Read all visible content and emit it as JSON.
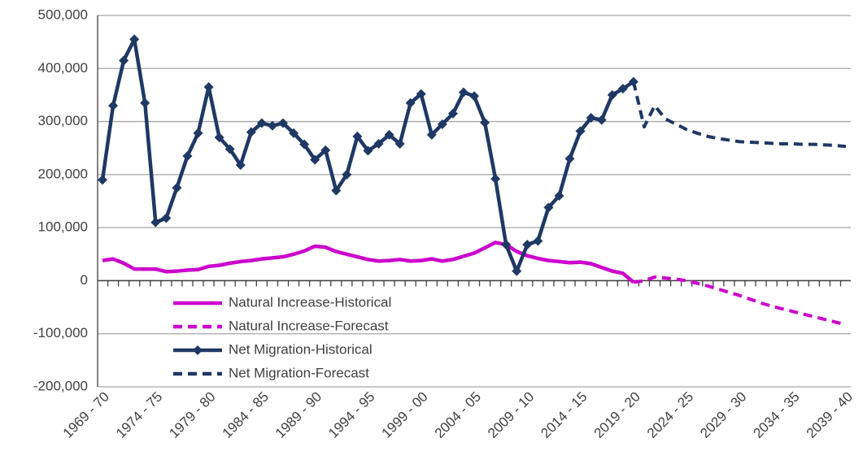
{
  "chart_data": {
    "type": "line",
    "categories": [
      "1969 - 70",
      null,
      null,
      null,
      null,
      "1974 - 75",
      null,
      null,
      null,
      null,
      "1979 - 80",
      null,
      null,
      null,
      null,
      "1984 - 85",
      null,
      null,
      null,
      null,
      "1989 - 90",
      null,
      null,
      null,
      null,
      "1994 - 95",
      null,
      null,
      null,
      null,
      "1999 - 00",
      null,
      null,
      null,
      null,
      "2004 - 05",
      null,
      null,
      null,
      null,
      "2009 - 10",
      null,
      null,
      null,
      null,
      "2014 - 15",
      null,
      null,
      null,
      null,
      "2019 - 20",
      null,
      null,
      null,
      null,
      "2024 - 25",
      null,
      null,
      null,
      null,
      "2029 - 30",
      null,
      null,
      null,
      null,
      "2034 - 35",
      null,
      null,
      null,
      null,
      "2039 - 40"
    ],
    "series": [
      {
        "name": "Natural Increase-Historical",
        "color": "#cc00cc",
        "dashed": false,
        "marker": "none",
        "values": [
          38000,
          41000,
          33000,
          22000,
          22000,
          22000,
          17000,
          18000,
          20000,
          21000,
          27000,
          29000,
          33000,
          36000,
          38000,
          41000,
          43000,
          45000,
          50000,
          56000,
          65000,
          63000,
          55000,
          50000,
          45000,
          40000,
          37000,
          38000,
          40000,
          37000,
          38000,
          41000,
          37000,
          40000,
          46000,
          52000,
          62000,
          72000,
          68000,
          55000,
          47000,
          42000,
          38000,
          36000,
          34000,
          35000,
          32000,
          25000,
          18000,
          14000,
          -3000,
          null,
          null,
          null,
          null,
          null,
          null,
          null,
          null,
          null,
          null,
          null,
          null,
          null,
          null,
          null,
          null,
          null,
          null,
          null,
          null
        ]
      },
      {
        "name": "Natural Increase-Forecast",
        "color": "#cc00cc",
        "dashed": true,
        "marker": "none",
        "values": [
          null,
          null,
          null,
          null,
          null,
          null,
          null,
          null,
          null,
          null,
          null,
          null,
          null,
          null,
          null,
          null,
          null,
          null,
          null,
          null,
          null,
          null,
          null,
          null,
          null,
          null,
          null,
          null,
          null,
          null,
          null,
          null,
          null,
          null,
          null,
          null,
          null,
          null,
          null,
          null,
          null,
          null,
          null,
          null,
          null,
          null,
          null,
          null,
          null,
          null,
          -3000,
          0,
          7000,
          5000,
          3000,
          0,
          -5000,
          -10000,
          -16000,
          -22000,
          -28000,
          -35000,
          -42000,
          -48000,
          -53000,
          -58000,
          -63000,
          -68000,
          -73000,
          -78000,
          -83000
        ]
      },
      {
        "name": "Net Migration-Historical",
        "color": "#1f3864",
        "dashed": false,
        "marker": "diamond",
        "values": [
          190000,
          330000,
          415000,
          455000,
          335000,
          110000,
          118000,
          175000,
          235000,
          278000,
          365000,
          270000,
          248000,
          218000,
          280000,
          297000,
          292000,
          297000,
          278000,
          257000,
          228000,
          246000,
          170000,
          200000,
          272000,
          245000,
          258000,
          275000,
          258000,
          335000,
          352000,
          275000,
          295000,
          315000,
          355000,
          348000,
          298000,
          192000,
          68000,
          18000,
          68000,
          75000,
          138000,
          160000,
          230000,
          282000,
          307000,
          303000,
          350000,
          362000,
          375000,
          null,
          null,
          null,
          null,
          null,
          null,
          null,
          null,
          null,
          null,
          null,
          null,
          null,
          null,
          null,
          null,
          null,
          null,
          null,
          null
        ]
      },
      {
        "name": "Net Migration-Forecast",
        "color": "#1f3864",
        "dashed": true,
        "marker": "none",
        "values": [
          null,
          null,
          null,
          null,
          null,
          null,
          null,
          null,
          null,
          null,
          null,
          null,
          null,
          null,
          null,
          null,
          null,
          null,
          null,
          null,
          null,
          null,
          null,
          null,
          null,
          null,
          null,
          null,
          null,
          null,
          null,
          null,
          null,
          null,
          null,
          null,
          null,
          null,
          null,
          null,
          null,
          null,
          null,
          null,
          null,
          null,
          null,
          null,
          null,
          null,
          375000,
          290000,
          330000,
          305000,
          295000,
          285000,
          278000,
          272000,
          268000,
          265000,
          262000,
          261000,
          260000,
          259000,
          258000,
          258000,
          257000,
          257000,
          256000,
          255000,
          253000
        ]
      }
    ],
    "ylim": [
      -200000,
      500000
    ],
    "yticks": [
      {
        "value": -200000,
        "label": "-200,000"
      },
      {
        "value": -100000,
        "label": "-100,000"
      },
      0,
      {
        "value": 100000,
        "label": "100,000"
      },
      {
        "value": 200000,
        "label": "200,000"
      },
      {
        "value": 300000,
        "label": "300,000"
      },
      {
        "value": 400000,
        "label": "400,000"
      },
      {
        "value": 500000,
        "label": "500,000"
      }
    ],
    "grid": true,
    "legend": "lower-left"
  }
}
